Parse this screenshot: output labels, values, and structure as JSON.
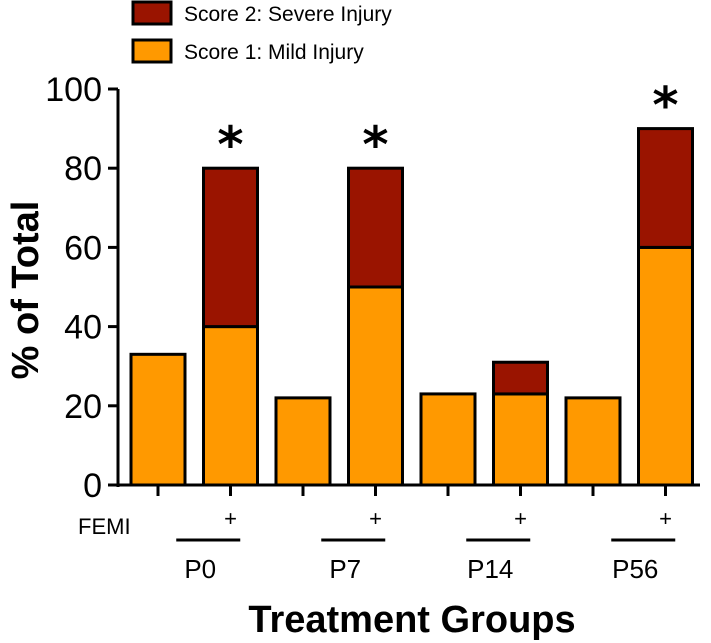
{
  "chart_data": {
    "type": "bar",
    "stacked": true,
    "title": "",
    "xlabel": "Treatment Groups",
    "ylabel": "% of Total",
    "ylim": [
      0,
      100
    ],
    "yticks": [
      0,
      20,
      40,
      60,
      80,
      100
    ],
    "colors": {
      "mild": "#FF9900",
      "severe": "#9A1400",
      "outline": "#000000"
    },
    "legend": [
      {
        "name": "Score 2: Severe Injury",
        "color": "#9A1400"
      },
      {
        "name": "Score 1: Mild Injury",
        "color": "#FF9900"
      }
    ],
    "bars": [
      {
        "group": "P0",
        "femi": "",
        "mild": 33,
        "severe": 0,
        "significant": false
      },
      {
        "group": "P0",
        "femi": "+",
        "mild": 40,
        "severe": 40,
        "significant": true
      },
      {
        "group": "P7",
        "femi": "",
        "mild": 22,
        "severe": 0,
        "significant": false
      },
      {
        "group": "P7",
        "femi": "+",
        "mild": 50,
        "severe": 30,
        "significant": true
      },
      {
        "group": "P14",
        "femi": "",
        "mild": 23,
        "severe": 0,
        "significant": false
      },
      {
        "group": "P14",
        "femi": "+",
        "mild": 23,
        "severe": 8,
        "significant": false
      },
      {
        "group": "P56",
        "femi": "",
        "mild": 22,
        "severe": 0,
        "significant": false
      },
      {
        "group": "P56",
        "femi": "+",
        "mild": 60,
        "severe": 30,
        "significant": true
      }
    ],
    "groups": [
      "P0",
      "P7",
      "P14",
      "P56"
    ],
    "femi_row_label": "FEMI",
    "significance_marker": "*"
  }
}
